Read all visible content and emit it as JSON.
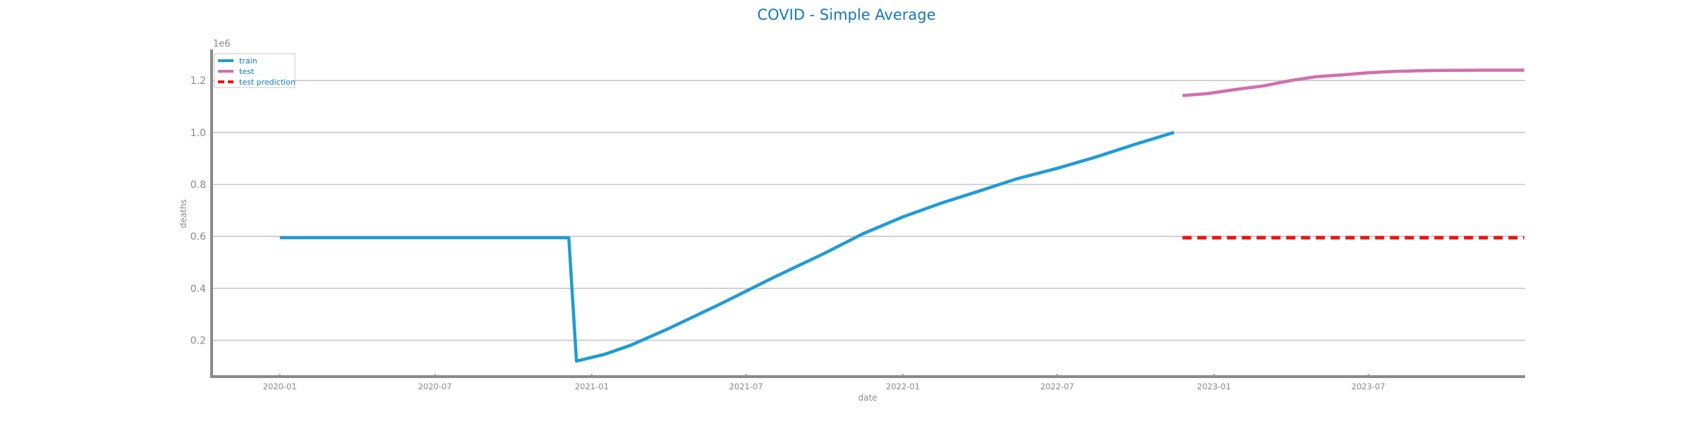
{
  "chart_data": {
    "type": "line",
    "title": "COVID - Simple Average",
    "xlabel": "date",
    "ylabel": "deaths",
    "y_offset_label": "1e6",
    "xlim": [
      "2019-10-13",
      "2024-01-01"
    ],
    "ylim": [
      0.06,
      1.32
    ],
    "x_ticks": [
      "2020-01",
      "2020-07",
      "2021-01",
      "2021-07",
      "2022-01",
      "2022-07",
      "2023-01",
      "2023-07"
    ],
    "y_ticks": [
      0.2,
      0.4,
      0.6,
      0.8,
      1.0,
      1.2
    ],
    "grid": "horizontal",
    "legend_position": "top-left",
    "series": [
      {
        "name": "train",
        "color": "#1f9bd7",
        "dash": "solid",
        "points": [
          [
            "2020-01-01",
            0.595
          ],
          [
            "2020-12-05",
            0.595
          ],
          [
            "2020-12-14",
            0.12
          ],
          [
            "2021-01-15",
            0.145
          ],
          [
            "2021-02-15",
            0.18
          ],
          [
            "2021-04-01",
            0.245
          ],
          [
            "2021-06-01",
            0.34
          ],
          [
            "2021-08-01",
            0.44
          ],
          [
            "2021-10-01",
            0.535
          ],
          [
            "2021-11-15",
            0.61
          ],
          [
            "2022-01-01",
            0.675
          ],
          [
            "2022-02-15",
            0.728
          ],
          [
            "2022-04-01",
            0.775
          ],
          [
            "2022-05-15",
            0.822
          ],
          [
            "2022-07-01",
            0.862
          ],
          [
            "2022-08-15",
            0.905
          ],
          [
            "2022-10-01",
            0.955
          ],
          [
            "2022-11-15",
            1.0
          ]
        ]
      },
      {
        "name": "test",
        "color": "#d26fae",
        "dash": "solid",
        "points": [
          [
            "2022-11-25",
            1.142
          ],
          [
            "2022-12-25",
            1.15
          ],
          [
            "2023-01-25",
            1.165
          ],
          [
            "2023-03-01",
            1.18
          ],
          [
            "2023-04-01",
            1.2
          ],
          [
            "2023-05-01",
            1.215
          ],
          [
            "2023-06-01",
            1.222
          ],
          [
            "2023-07-01",
            1.23
          ],
          [
            "2023-08-01",
            1.235
          ],
          [
            "2023-09-01",
            1.238
          ],
          [
            "2023-10-01",
            1.239
          ],
          [
            "2023-11-15",
            1.24
          ],
          [
            "2023-12-31",
            1.24
          ]
        ]
      },
      {
        "name": "test prediction",
        "color": "#ee1111",
        "dash": "dashed",
        "points": [
          [
            "2022-11-25",
            0.595
          ],
          [
            "2023-12-31",
            0.595
          ]
        ]
      }
    ]
  }
}
